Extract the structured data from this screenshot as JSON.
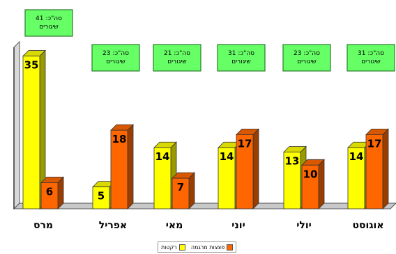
{
  "chart_data": {
    "type": "bar",
    "categories": [
      "מרס",
      "אפריל",
      "מאי",
      "יוני",
      "יולי",
      "אוגוסט"
    ],
    "series": [
      {
        "name": "רקטות",
        "color": "#ffff00",
        "values": [
          35,
          5,
          14,
          14,
          13,
          14
        ]
      },
      {
        "name": "פצצות מרגמה",
        "color": "#ff6600",
        "values": [
          6,
          18,
          7,
          17,
          10,
          17
        ]
      }
    ],
    "totals": [
      [
        "סה\"כ: 41",
        "שיגורים"
      ],
      [
        "סה\"כ: 23",
        "שיגורים"
      ],
      [
        "סה\"כ: 21",
        "שיגורים"
      ],
      [
        "סה\"כ: 31",
        "שיגורים"
      ],
      [
        "סה\"כ: 23",
        "שיגורים"
      ],
      [
        "סה\"כ: 31",
        "שיגורים"
      ]
    ],
    "ylim": [
      0,
      37
    ],
    "grid": false,
    "legend": "bottom-center",
    "total_box_color": "#66ff66"
  }
}
